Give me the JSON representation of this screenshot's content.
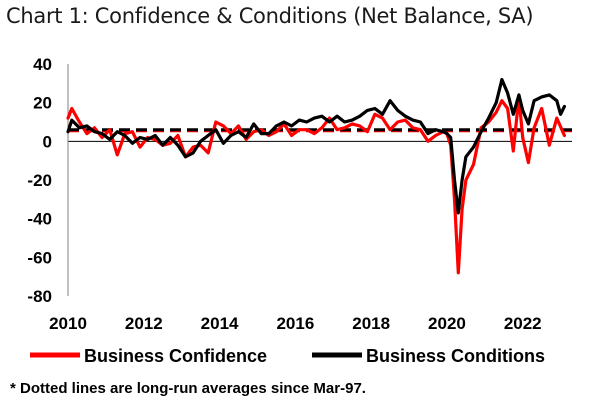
{
  "chart_data": {
    "type": "line",
    "title": "Chart 1: Confidence & Conditions (Net Balance, SA)",
    "xlabel": "",
    "ylabel": "",
    "ylim": [
      -80,
      40
    ],
    "xlim": [
      2010,
      2023.3
    ],
    "yticks": [
      40,
      20,
      0,
      -20,
      -40,
      -60,
      -80
    ],
    "xticks": [
      2010,
      2012,
      2014,
      2016,
      2018,
      2020,
      2022
    ],
    "grid": false,
    "legend_position": "bottom",
    "zero_line": true,
    "series": [
      {
        "name": "Business Confidence",
        "color": "#ff0000",
        "x": [
          2010.0,
          2010.1,
          2010.3,
          2010.5,
          2010.7,
          2010.9,
          2011.1,
          2011.3,
          2011.5,
          2011.7,
          2011.9,
          2012.1,
          2012.3,
          2012.5,
          2012.7,
          2012.9,
          2013.1,
          2013.3,
          2013.5,
          2013.7,
          2013.9,
          2014.1,
          2014.3,
          2014.5,
          2014.7,
          2014.9,
          2015.1,
          2015.3,
          2015.5,
          2015.7,
          2015.9,
          2016.1,
          2016.3,
          2016.5,
          2016.7,
          2016.9,
          2017.1,
          2017.3,
          2017.5,
          2017.7,
          2017.9,
          2018.1,
          2018.3,
          2018.5,
          2018.7,
          2018.9,
          2019.1,
          2019.3,
          2019.5,
          2019.7,
          2019.9,
          2020.0,
          2020.1,
          2020.2,
          2020.3,
          2020.4,
          2020.5,
          2020.7,
          2020.9,
          2021.1,
          2021.3,
          2021.45,
          2021.6,
          2021.75,
          2021.9,
          2022.0,
          2022.15,
          2022.3,
          2022.5,
          2022.7,
          2022.9,
          2023.1
        ],
        "values": [
          12,
          17,
          10,
          4,
          7,
          2,
          6,
          -7,
          4,
          5,
          -3,
          2,
          1,
          -2,
          -1,
          3,
          -8,
          -3,
          -2,
          -6,
          10,
          8,
          4,
          8,
          1,
          5,
          6,
          3,
          5,
          9,
          3,
          6,
          6,
          4,
          7,
          12,
          6,
          7,
          9,
          8,
          5,
          14,
          12,
          6,
          10,
          11,
          7,
          6,
          0,
          3,
          5,
          4,
          -2,
          -30,
          -68,
          -35,
          -20,
          -12,
          7,
          10,
          15,
          21,
          17,
          -5,
          23,
          2,
          -11,
          7,
          17,
          -2,
          12,
          3
        ]
      },
      {
        "name": "Business Conditions",
        "color": "#000000",
        "x": [
          2010.0,
          2010.1,
          2010.3,
          2010.5,
          2010.7,
          2010.9,
          2011.1,
          2011.3,
          2011.5,
          2011.7,
          2011.9,
          2012.1,
          2012.3,
          2012.5,
          2012.7,
          2012.9,
          2013.1,
          2013.3,
          2013.5,
          2013.7,
          2013.9,
          2014.1,
          2014.3,
          2014.5,
          2014.7,
          2014.9,
          2015.1,
          2015.3,
          2015.5,
          2015.7,
          2015.9,
          2016.1,
          2016.3,
          2016.5,
          2016.7,
          2016.9,
          2017.1,
          2017.3,
          2017.5,
          2017.7,
          2017.9,
          2018.1,
          2018.3,
          2018.5,
          2018.7,
          2018.9,
          2019.1,
          2019.3,
          2019.5,
          2019.7,
          2019.9,
          2020.0,
          2020.1,
          2020.2,
          2020.3,
          2020.4,
          2020.5,
          2020.7,
          2020.9,
          2021.1,
          2021.3,
          2021.45,
          2021.6,
          2021.75,
          2021.9,
          2022.0,
          2022.15,
          2022.3,
          2022.5,
          2022.7,
          2022.9,
          2023.0,
          2023.1
        ],
        "values": [
          5,
          11,
          7,
          8,
          5,
          4,
          1,
          5,
          3,
          -1,
          2,
          1,
          3,
          -2,
          2,
          -2,
          -8,
          -6,
          0,
          3,
          6,
          -1,
          3,
          5,
          2,
          9,
          4,
          4,
          8,
          10,
          8,
          11,
          10,
          12,
          13,
          10,
          13,
          10,
          11,
          13,
          16,
          17,
          14,
          21,
          16,
          13,
          11,
          10,
          4,
          6,
          5,
          4,
          2,
          -20,
          -37,
          -20,
          -8,
          -3,
          5,
          12,
          20,
          32,
          25,
          14,
          24,
          16,
          9,
          21,
          23,
          24,
          21,
          14,
          18
        ]
      }
    ],
    "averages": [
      {
        "name": "Business Confidence long-run average",
        "value": 5.5,
        "color": "#ff0000"
      },
      {
        "name": "Business Conditions long-run average",
        "value": 6,
        "color": "#000000"
      }
    ],
    "legend": [
      "Business Confidence",
      "Business Conditions"
    ],
    "footnote": "* Dotted lines are long-run averages since Mar-97."
  }
}
